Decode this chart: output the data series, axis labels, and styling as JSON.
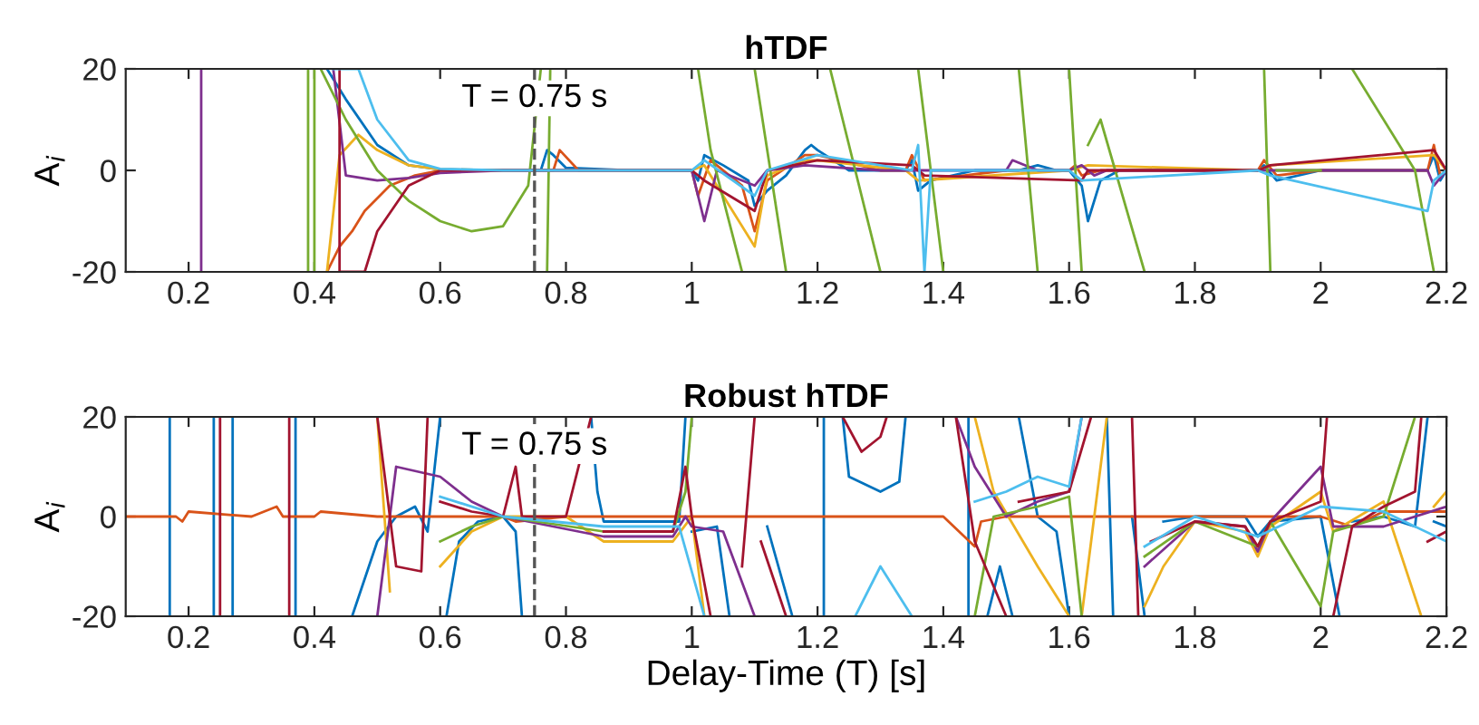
{
  "chart_data": [
    {
      "type": "line",
      "title": "hTDF",
      "ylabel": "A$_{i}$",
      "xlim": [
        0.1,
        2.2
      ],
      "xticks": [
        0.2,
        0.4,
        0.6,
        0.8,
        1,
        1.2,
        1.4,
        1.6,
        1.8,
        2,
        2.2
      ],
      "ylim": [
        -20,
        20
      ],
      "yticks": [
        -20,
        0,
        20
      ],
      "grid": false,
      "legend": false,
      "ref_lines": [
        {
          "axis": "x",
          "value": 0.75,
          "label": "T = 0.75 s",
          "color": "#555555",
          "line_style": "dashed"
        }
      ],
      "series": [
        {
          "color": "#0072bd",
          "x": [
            0.42,
            0.45,
            0.5,
            0.55,
            0.6,
            0.7,
            0.76,
            0.77,
            0.78,
            0.8,
            0.9,
            1.0,
            1.01,
            1.02,
            1.05,
            1.09,
            1.1,
            1.12,
            1.15,
            1.18,
            1.19,
            1.2,
            1.25,
            1.34,
            1.35,
            1.36,
            1.38,
            1.45,
            1.52,
            1.55,
            1.58,
            1.6,
            1.62,
            1.63,
            1.65,
            1.68,
            1.75,
            1.9,
            1.91,
            1.93,
            2.0,
            2.1,
            2.17,
            2.18,
            2.19,
            2.2
          ],
          "values": [
            20,
            14,
            5,
            1,
            0.2,
            0,
            0,
            4,
            3,
            0.5,
            0,
            0,
            -2,
            3,
            1,
            -2,
            -7,
            -4,
            -1,
            4,
            5,
            4,
            0,
            0,
            2,
            -4,
            -2,
            0,
            0,
            1,
            0,
            0,
            -3,
            -10,
            -2,
            0,
            0,
            0,
            1,
            -2,
            0,
            0,
            0,
            3,
            -2,
            0
          ]
        },
        {
          "color": "#d95319",
          "x": [
            0.42,
            0.44,
            0.46,
            0.48,
            0.52,
            0.56,
            0.6,
            0.7,
            0.78,
            0.79,
            0.82,
            1.0,
            1.01,
            1.03,
            1.08,
            1.1,
            1.12,
            1.18,
            1.2,
            1.3,
            1.34,
            1.35,
            1.37,
            1.5,
            1.6,
            1.61,
            1.62,
            1.65,
            1.7,
            1.9,
            1.91,
            1.93,
            2.0,
            2.17,
            2.18,
            2.19,
            2.2
          ],
          "values": [
            -20,
            -15,
            -12,
            -8,
            -3,
            -1,
            0,
            0,
            0,
            4,
            0,
            0,
            -5,
            2,
            -3,
            -12,
            -2,
            3,
            3,
            0,
            0,
            3,
            -2,
            0,
            0,
            1,
            -1,
            0,
            0,
            0,
            2,
            -1,
            0,
            0,
            5,
            -1,
            0
          ]
        },
        {
          "color": "#edb120",
          "x": [
            0.42,
            0.44,
            0.47,
            0.5,
            0.55,
            0.6,
            0.7,
            1.0,
            1.02,
            1.1,
            1.12,
            1.18,
            1.2,
            1.34,
            1.36,
            1.6,
            1.63,
            1.9,
            1.92,
            2.18,
            2.2
          ],
          "values": [
            -20,
            3,
            7,
            4,
            1,
            0.2,
            0,
            0,
            1,
            -15,
            -1,
            2,
            2,
            0,
            -2,
            0,
            1,
            0,
            1,
            3,
            0
          ]
        },
        {
          "color": "#7e2f8e",
          "x": [
            0.22,
            0.22,
            0.3,
            0.43,
            0.45,
            0.5,
            0.55,
            0.6,
            0.7,
            1.0,
            1.02,
            1.04,
            1.1,
            1.12,
            1.18,
            1.3,
            1.5,
            1.51,
            1.55,
            1.6,
            1.62,
            1.64,
            1.66,
            1.7,
            2.0,
            2.17,
            2.18,
            2.2
          ],
          "values": [
            20,
            -20,
            null,
            20,
            -1,
            -2,
            -1.5,
            -0.5,
            0,
            0,
            -10,
            0,
            -3,
            0,
            1,
            0,
            0,
            2,
            0,
            0,
            1,
            -1,
            0,
            0,
            0,
            0,
            -3,
            0
          ]
        },
        {
          "color": "#77ac30",
          "x": [
            0.39,
            0.39,
            0.395,
            0.4,
            0.4,
            0.405,
            0.41,
            0.45,
            0.5,
            0.55,
            0.6,
            0.65,
            0.7,
            0.74,
            0.76,
            0.765,
            0.77,
            0.775,
            0.9,
            1.01,
            1.03,
            1.08,
            1.09,
            1.1,
            1.15,
            1.2,
            1.22,
            1.24,
            1.3,
            1.33,
            1.36,
            1.4,
            1.45,
            1.52,
            1.55,
            1.58,
            1.6,
            1.62,
            1.625,
            1.63,
            1.65,
            1.72,
            1.8,
            1.91,
            1.92,
            1.925,
            1.93,
            2.0,
            2.03,
            2.05,
            2.15,
            2.18
          ],
          "values": [
            -20,
            20,
            null,
            20,
            -20,
            null,
            20,
            10,
            0,
            -6,
            -10,
            -12,
            -11,
            -3,
            20,
            null,
            -20,
            20,
            null,
            20,
            4,
            -20,
            null,
            20,
            -20,
            null,
            20,
            10,
            -20,
            null,
            20,
            -20,
            null,
            20,
            -20,
            null,
            20,
            -20,
            null,
            5,
            10,
            -20,
            null,
            20,
            -20,
            null,
            0,
            0,
            null,
            20,
            0,
            -20
          ]
        },
        {
          "color": "#a2142f",
          "x": [
            0.44,
            0.44,
            0.48,
            0.5,
            0.55,
            0.6,
            0.7,
            1.0,
            1.02,
            1.1,
            1.12,
            1.2,
            1.35,
            1.37,
            1.62,
            1.63,
            1.9,
            1.92,
            2.18,
            2.2
          ],
          "values": [
            20,
            -20,
            -20,
            -12,
            -3,
            0,
            0,
            0,
            -2,
            -8,
            0,
            2,
            1,
            -1,
            -2,
            0,
            0,
            1,
            4,
            0
          ]
        },
        {
          "color": "#4dbeee",
          "x": [
            0.43,
            0.47,
            0.5,
            0.55,
            0.6,
            0.7,
            1.0,
            1.02,
            1.1,
            1.12,
            1.2,
            1.35,
            1.36,
            1.37,
            1.38,
            1.6,
            1.62,
            1.9,
            1.92,
            2.17,
            2.18,
            2.2
          ],
          "values": [
            20,
            20,
            10,
            2,
            0.3,
            0,
            0,
            2,
            -5,
            0,
            3,
            0,
            5,
            -20,
            0,
            0,
            -2,
            0,
            -1,
            -8,
            -2,
            0
          ]
        }
      ]
    },
    {
      "type": "line",
      "title": "Robust hTDF",
      "xlabel": "Delay-Time (T) [s]",
      "ylabel": "A$_{i}$",
      "xlim": [
        0.1,
        2.2
      ],
      "xticks": [
        0.2,
        0.4,
        0.6,
        0.8,
        1,
        1.2,
        1.4,
        1.6,
        1.8,
        2,
        2.2
      ],
      "ylim": [
        -20,
        20
      ],
      "yticks": [
        -20,
        0,
        20
      ],
      "grid": false,
      "legend": false,
      "ref_lines": [
        {
          "axis": "x",
          "value": 0.75,
          "label": "T = 0.75 s",
          "color": "#555555",
          "line_style": "dashed"
        }
      ],
      "series": [
        {
          "color": "#0072bd",
          "x": [
            0.17,
            0.17,
            0.2,
            0.24,
            0.24,
            0.25,
            0.27,
            0.27,
            0.3,
            0.37,
            0.37,
            0.4,
            0.46,
            0.5,
            0.53,
            0.56,
            0.58,
            0.6,
            0.605,
            0.61,
            0.63,
            0.66,
            0.7,
            0.72,
            0.73,
            0.8,
            0.84,
            0.85,
            0.86,
            0.98,
            0.99,
            0.995,
            1.0,
            1.04,
            1.06,
            1.09,
            1.12,
            1.16,
            1.18,
            1.21,
            1.21,
            1.22,
            1.24,
            1.25,
            1.3,
            1.33,
            1.34,
            1.4,
            1.44,
            1.44,
            1.45,
            1.47,
            1.49,
            1.5,
            1.51,
            1.515,
            1.52,
            1.55,
            1.58,
            1.6,
            1.63,
            1.66,
            1.67,
            1.68,
            1.7,
            1.72,
            1.73,
            1.75,
            1.8,
            1.88,
            1.9,
            1.92,
            2.0,
            2.03,
            2.04,
            2.05,
            2.1,
            2.15,
            2.17,
            2.175,
            2.18,
            2.2
          ],
          "values": [
            20,
            -20,
            null,
            20,
            -20,
            null,
            -20,
            20,
            null,
            20,
            -20,
            null,
            -20,
            -5,
            0,
            2,
            -3,
            20,
            null,
            -20,
            -5,
            -1,
            0,
            -3,
            -20,
            null,
            20,
            5,
            -1,
            -1,
            20,
            null,
            -3,
            -2,
            -20,
            null,
            -2,
            -20,
            null,
            20,
            -20,
            null,
            20,
            8,
            5,
            7,
            20,
            null,
            20,
            -20,
            null,
            -20,
            -10,
            -15,
            -20,
            null,
            20,
            0,
            -3,
            -20,
            null,
            20,
            -20,
            null,
            0,
            -20,
            null,
            -1,
            0,
            0,
            -4,
            -1,
            0,
            -20,
            null,
            -1,
            0,
            -2,
            20,
            null,
            -1,
            -2
          ]
        },
        {
          "color": "#d95319",
          "x": [
            0.1,
            0.18,
            0.19,
            0.2,
            0.3,
            0.34,
            0.35,
            0.4,
            0.41,
            0.5,
            0.6,
            0.7,
            0.72,
            0.8,
            1.0,
            1.4,
            1.45,
            1.46,
            1.5,
            1.6,
            1.7,
            1.8,
            1.9,
            2.0,
            2.05,
            2.1,
            2.2
          ],
          "values": [
            0,
            0,
            -1,
            1,
            0,
            2,
            0,
            0,
            1,
            0,
            0,
            0,
            -1,
            0,
            0,
            0,
            -6,
            -1,
            0,
            0,
            0,
            0,
            0,
            0,
            -2,
            1,
            1
          ]
        },
        {
          "color": "#edb120",
          "x": [
            0.5,
            0.52,
            0.55,
            0.6,
            0.65,
            0.7,
            0.73,
            0.8,
            0.86,
            0.97,
            1.0,
            1.02,
            1.2,
            1.45,
            1.48,
            1.55,
            1.6,
            1.61,
            1.62,
            1.66,
            1.7,
            1.72,
            1.75,
            1.8,
            1.88,
            1.9,
            1.92,
            2.0,
            2.02,
            2.1,
            2.16,
            2.17,
            2.18,
            2.2
          ],
          "values": [
            20,
            -15,
            null,
            -10,
            -3,
            0,
            0,
            0,
            -5,
            -5,
            0,
            -20,
            null,
            20,
            5,
            -10,
            -20,
            null,
            -20,
            20,
            null,
            -18,
            -10,
            -1,
            -3,
            -8,
            -2,
            5,
            -3,
            3,
            -20,
            null,
            2,
            5
          ]
        },
        {
          "color": "#7e2f8e",
          "x": [
            0.5,
            0.53,
            0.6,
            0.65,
            0.7,
            0.86,
            0.97,
            0.99,
            1.0,
            1.05,
            1.1,
            1.2,
            1.42,
            1.45,
            1.5,
            1.55,
            1.6,
            1.62,
            1.65,
            1.72,
            1.8,
            1.88,
            1.9,
            1.92,
            2.0,
            2.02,
            2.1,
            2.2
          ],
          "values": [
            -20,
            10,
            8,
            3,
            0,
            -4,
            -4,
            0,
            -2,
            -3,
            -20,
            null,
            20,
            10,
            0,
            3,
            5,
            20,
            null,
            -10,
            -1,
            -2,
            -7,
            -1,
            10,
            -2,
            -2,
            2
          ]
        },
        {
          "color": "#77ac30",
          "x": [
            0.6,
            0.65,
            0.7,
            0.86,
            0.97,
            0.99,
            1.0,
            1.2,
            1.45,
            1.48,
            1.55,
            1.6,
            1.62,
            1.65,
            1.72,
            1.8,
            1.9,
            1.92,
            2.0,
            2.02,
            2.1,
            2.15
          ],
          "values": [
            -5,
            -2,
            0,
            -3,
            -3,
            5,
            20,
            null,
            -20,
            0,
            2,
            4,
            -20,
            null,
            -8,
            -1,
            -6,
            -1,
            -18,
            -3,
            0,
            20
          ]
        },
        {
          "color": "#a2142f",
          "x": [
            0.25,
            0.25,
            0.3,
            0.36,
            0.36,
            0.4,
            0.5,
            0.53,
            0.57,
            0.58,
            0.59,
            0.6,
            0.65,
            0.7,
            0.72,
            0.73,
            0.8,
            0.84,
            0.85,
            0.86,
            0.97,
            0.99,
            1.0,
            1.03,
            1.05,
            1.08,
            1.1,
            1.105,
            1.11,
            1.15,
            1.2,
            1.24,
            1.27,
            1.3,
            1.31,
            1.35,
            1.42,
            1.45,
            1.5,
            1.51,
            1.52,
            1.6,
            1.635,
            1.65,
            1.7,
            1.71,
            1.72,
            1.73,
            1.8,
            1.88,
            1.9,
            1.92,
            2.0,
            2.01,
            2.015,
            2.02,
            2.05,
            2.1,
            2.15,
            2.16,
            2.165,
            2.17,
            2.2
          ],
          "values": [
            -20,
            20,
            null,
            20,
            -20,
            null,
            20,
            -10,
            -11,
            20,
            null,
            3,
            1,
            0,
            10,
            0,
            0,
            20,
            null,
            -3,
            -3,
            10,
            0,
            -20,
            null,
            -10,
            20,
            null,
            -5,
            -20,
            null,
            20,
            13,
            16,
            20,
            null,
            20,
            -5,
            -20,
            null,
            3,
            5,
            20,
            null,
            20,
            -20,
            null,
            -5,
            -1,
            -2,
            -6,
            -1,
            3,
            20,
            null,
            -20,
            -2,
            2,
            5,
            20,
            null,
            -5,
            -3
          ]
        },
        {
          "color": "#4dbeee",
          "x": [
            0.6,
            0.7,
            0.86,
            0.98,
            1.02,
            1.2,
            1.26,
            1.3,
            1.35,
            1.4,
            1.45,
            1.5,
            1.55,
            1.6,
            1.62,
            1.65,
            1.72,
            1.8,
            1.9,
            2.0,
            2.1,
            2.2
          ],
          "values": [
            4,
            0,
            -2,
            -2,
            -20,
            null,
            -20,
            -10,
            -20,
            null,
            3,
            5,
            8,
            6,
            20,
            null,
            -6,
            0,
            -4,
            2,
            1,
            -5
          ]
        }
      ]
    }
  ]
}
